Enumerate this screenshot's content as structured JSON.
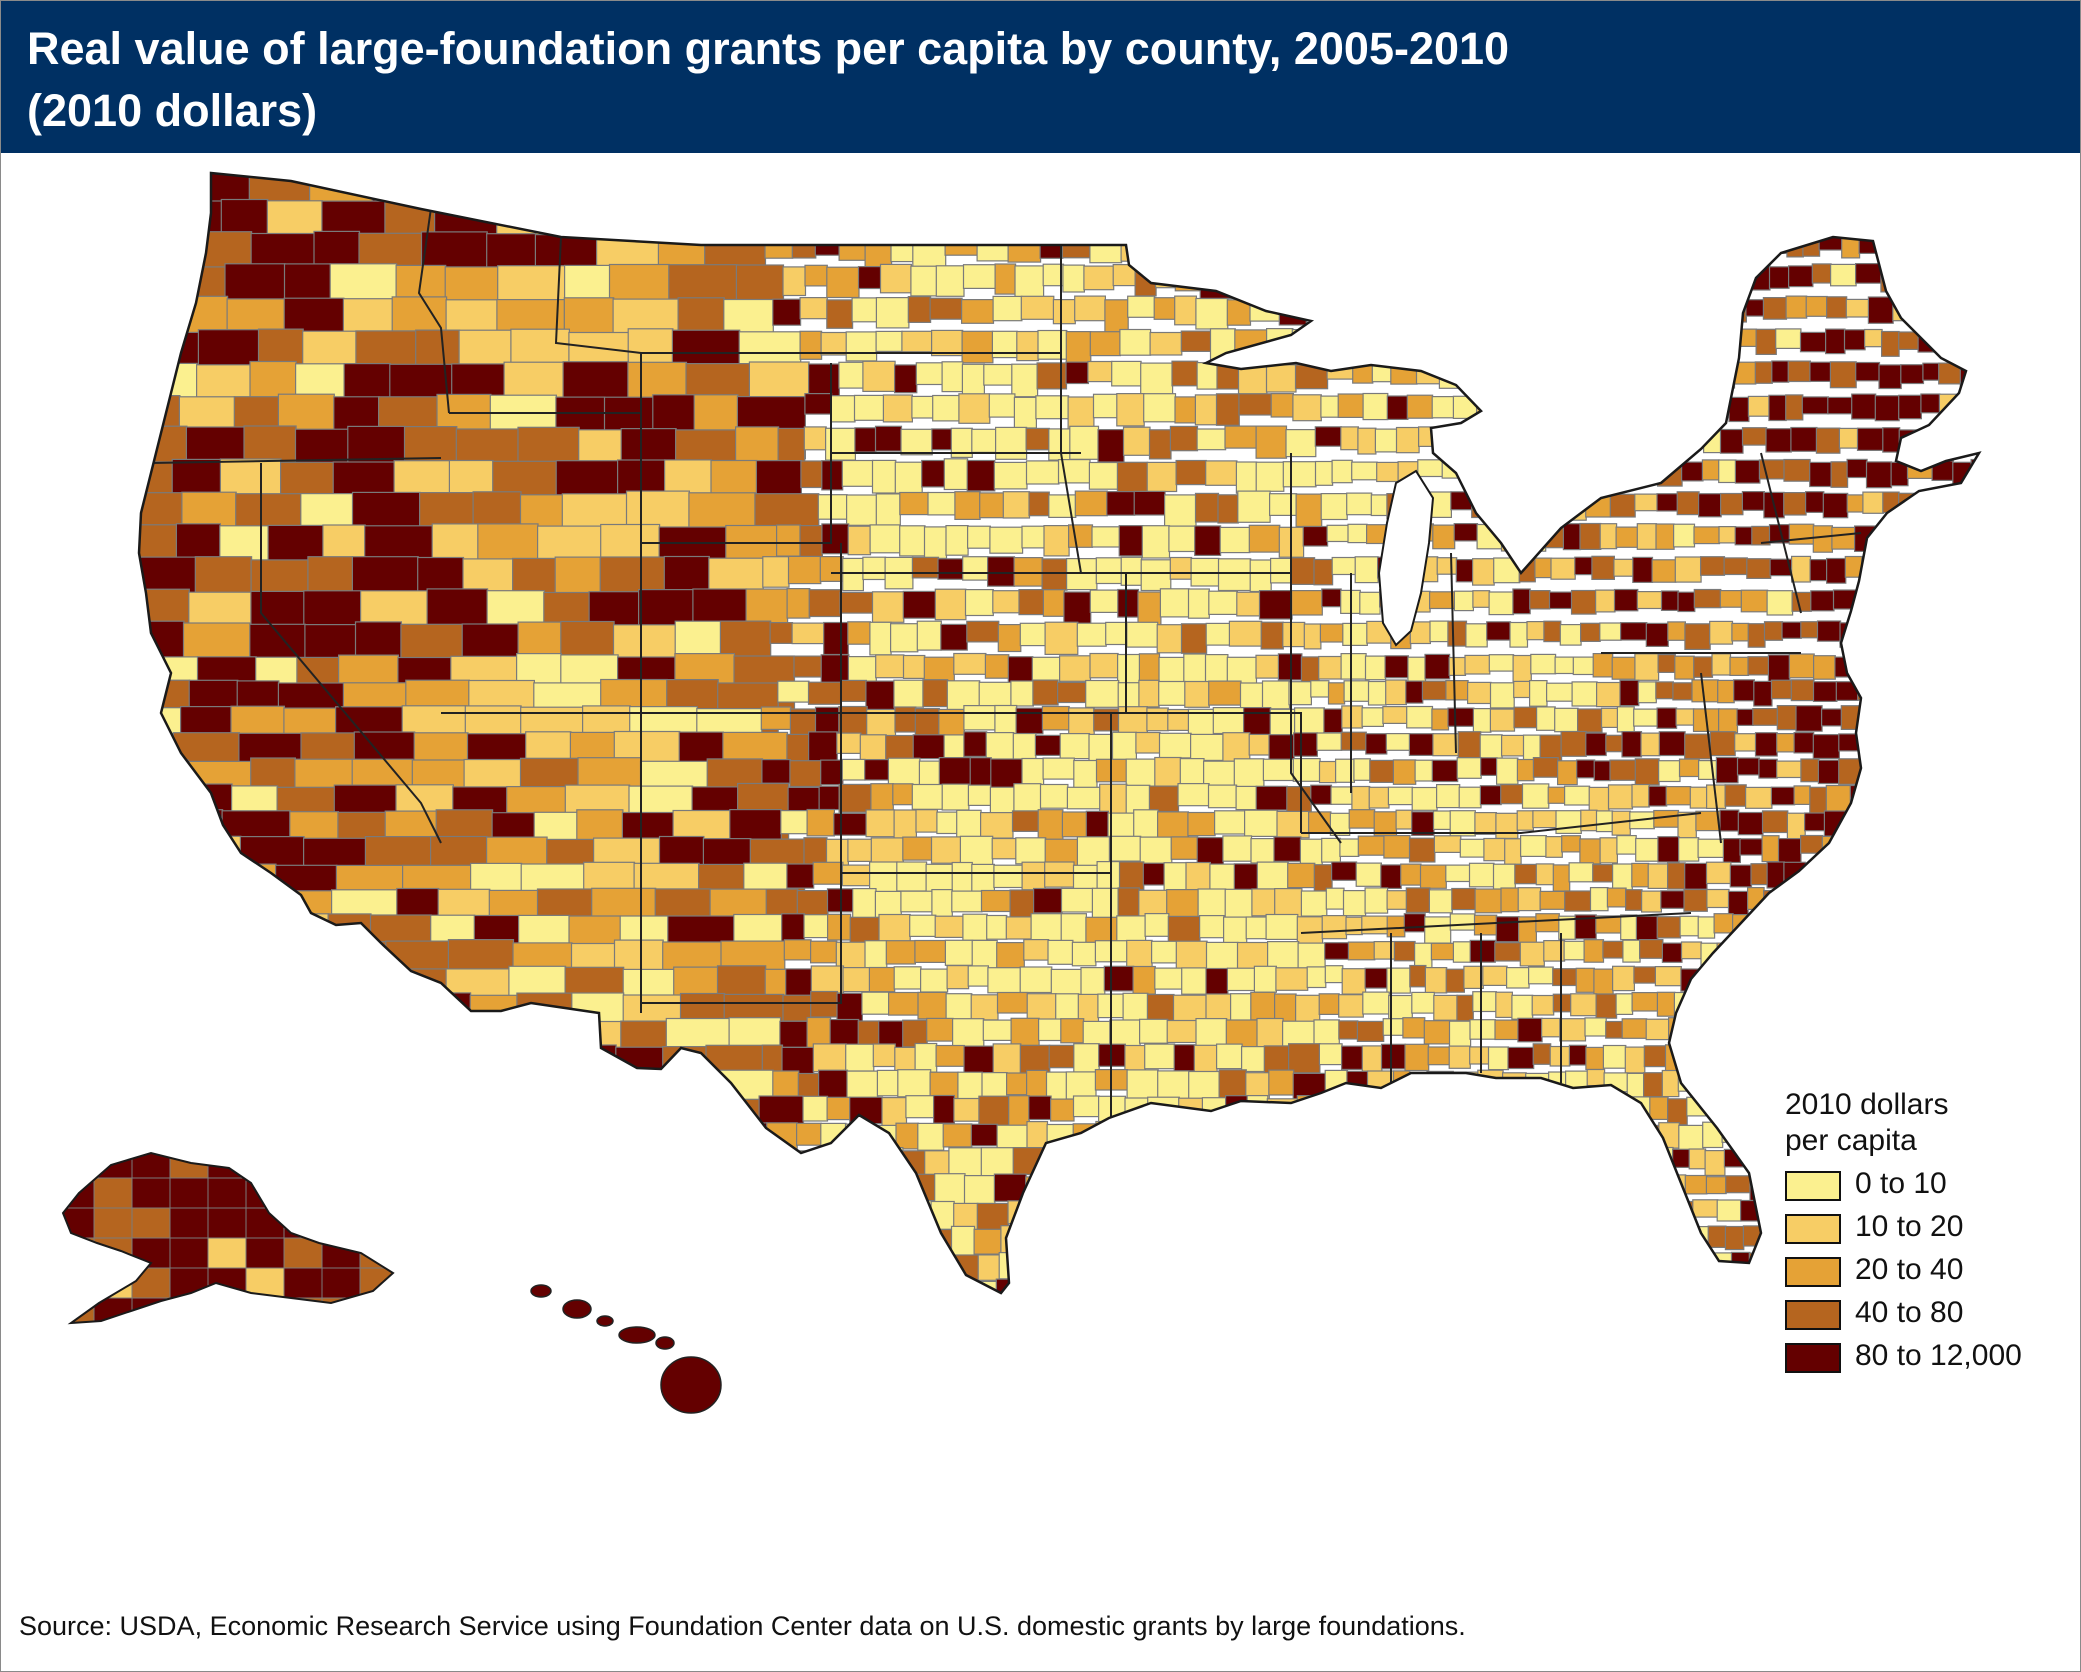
{
  "header": {
    "title_line1": "Real value of large-foundation grants per capita by county, 2005-2010",
    "title_line2": "(2010 dollars)",
    "background_color": "#003063"
  },
  "legend": {
    "title_line1": "2010 dollars",
    "title_line2": "per capita",
    "items": [
      {
        "label": "0 to 10",
        "color": "#fbf08f"
      },
      {
        "label": "10 to 20",
        "color": "#f7cd65"
      },
      {
        "label": "20 to 40",
        "color": "#e5a236"
      },
      {
        "label": "40 to 80",
        "color": "#b5651f"
      },
      {
        "label": "80 to 12,000",
        "color": "#640000"
      }
    ]
  },
  "map": {
    "subject": "County choropleth of the United States including Alaska and Hawaii",
    "county_border_color": "#7a7a7a",
    "state_border_color": "#222222"
  },
  "source": "Source: USDA, Economic Research Service using Foundation Center data on U.S. domestic grants by large foundations."
}
